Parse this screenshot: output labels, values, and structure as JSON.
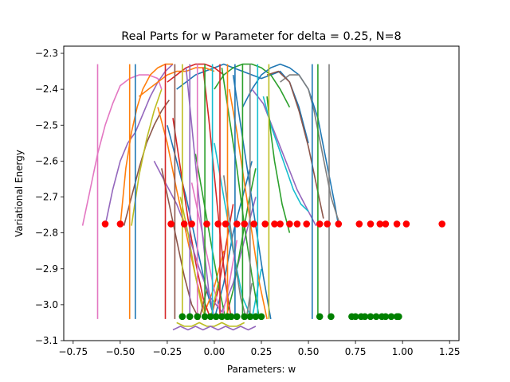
{
  "chart_data": {
    "type": "line",
    "title": "Real Parts for w Parameter for delta = 0.25, N=8",
    "xlabel": "Parameters: w",
    "ylabel": "Variational Energy",
    "xlim": [
      -0.8,
      1.3
    ],
    "ylim": [
      -3.1,
      -2.28
    ],
    "grid": false,
    "xticks": [
      -0.75,
      -0.5,
      -0.25,
      0.0,
      0.25,
      0.5,
      0.75,
      1.0,
      1.25
    ],
    "xtick_labels": [
      "−0.75",
      "−0.50",
      "−0.25",
      "0.00",
      "0.25",
      "0.50",
      "0.75",
      "1.00",
      "1.25"
    ],
    "yticks": [
      -3.1,
      -3.0,
      -2.9,
      -2.8,
      -2.7,
      -2.6,
      -2.5,
      -2.4,
      -2.3
    ],
    "ytick_labels": [
      "−3.1",
      "−3.0",
      "−2.9",
      "−2.8",
      "−2.7",
      "−2.6",
      "−2.5",
      "−2.4",
      "−2.3"
    ],
    "series": [
      {
        "color": "#e377c2",
        "x": [
          -0.7,
          -0.66,
          -0.62,
          -0.58,
          -0.54,
          -0.5,
          -0.45,
          -0.4,
          -0.35,
          -0.3,
          -0.28
        ],
        "y": [
          -2.78,
          -2.68,
          -2.58,
          -2.5,
          -2.44,
          -2.39,
          -2.37,
          -2.36,
          -2.36,
          -2.37,
          -2.4
        ]
      },
      {
        "color": "#e377c2",
        "x": [
          -0.62,
          -0.62,
          -0.62
        ],
        "y": [
          -3.04,
          -2.7,
          -2.33
        ]
      },
      {
        "color": "#9467bd",
        "x": [
          -0.58,
          -0.54,
          -0.5,
          -0.46,
          -0.42,
          -0.38,
          -0.34,
          -0.3,
          -0.26,
          -0.22
        ],
        "y": [
          -2.78,
          -2.68,
          -2.6,
          -2.55,
          -2.52,
          -2.47,
          -2.42,
          -2.38,
          -2.35,
          -2.33
        ]
      },
      {
        "color": "#ff7f0e",
        "x": [
          -0.5,
          -0.47,
          -0.44,
          -0.41,
          -0.38,
          -0.34,
          -0.3,
          -0.26,
          -0.22
        ],
        "y": [
          -2.78,
          -2.62,
          -2.52,
          -2.45,
          -2.4,
          -2.36,
          -2.34,
          -2.33,
          -2.33
        ]
      },
      {
        "color": "#8c564b",
        "x": [
          -0.48,
          -0.44,
          -0.4,
          -0.36,
          -0.32,
          -0.28,
          -0.24
        ],
        "y": [
          -2.78,
          -2.7,
          -2.62,
          -2.55,
          -2.5,
          -2.46,
          -2.43
        ]
      },
      {
        "color": "#bcbd22",
        "x": [
          -0.44,
          -0.4,
          -0.36,
          -0.32,
          -0.28
        ],
        "y": [
          -2.78,
          -2.64,
          -2.54,
          -2.46,
          -2.4
        ]
      },
      {
        "color": "#1f77b4",
        "x": [
          -0.2,
          -0.15,
          -0.1,
          -0.05,
          0.0,
          0.05,
          0.1,
          0.15,
          0.2,
          0.25,
          0.3,
          0.35,
          0.4,
          0.45,
          0.5
        ],
        "y": [
          -2.4,
          -2.38,
          -2.36,
          -2.35,
          -2.34,
          -2.33,
          -2.34,
          -2.35,
          -2.36,
          -2.37,
          -2.36,
          -2.35,
          -2.38,
          -2.45,
          -2.55
        ]
      },
      {
        "color": "#ff7f0e",
        "x": [
          -0.4,
          -0.35,
          -0.3,
          -0.25,
          -0.2,
          -0.15,
          -0.1,
          -0.05,
          0.0
        ],
        "y": [
          -2.42,
          -2.4,
          -2.38,
          -2.36,
          -2.35,
          -2.35,
          -2.34,
          -2.34,
          -2.35
        ]
      },
      {
        "color": "#d62728",
        "x": [
          -0.25,
          -0.2,
          -0.15,
          -0.1,
          -0.05,
          0.0,
          0.05
        ],
        "y": [
          -2.38,
          -2.36,
          -2.34,
          -2.33,
          -2.33,
          -2.34,
          -2.36
        ]
      },
      {
        "color": "#2ca02c",
        "x": [
          0.0,
          0.05,
          0.1,
          0.15,
          0.2,
          0.25,
          0.3,
          0.35,
          0.4
        ],
        "y": [
          -2.4,
          -2.36,
          -2.34,
          -2.33,
          -2.33,
          -2.34,
          -2.36,
          -2.4,
          -2.45
        ]
      },
      {
        "color": "#1f77b4",
        "x": [
          0.15,
          0.2,
          0.25,
          0.3,
          0.35,
          0.4,
          0.45,
          0.5,
          0.55,
          0.58,
          0.61,
          0.64,
          0.66
        ],
        "y": [
          -2.45,
          -2.4,
          -2.36,
          -2.34,
          -2.33,
          -2.34,
          -2.36,
          -2.4,
          -2.48,
          -2.56,
          -2.64,
          -2.72,
          -2.78
        ]
      },
      {
        "color": "#7f7f7f",
        "x": [
          0.35,
          0.4,
          0.45,
          0.5,
          0.53,
          0.56,
          0.59,
          0.62,
          0.65,
          0.67
        ],
        "y": [
          -2.38,
          -2.36,
          -2.36,
          -2.4,
          -2.46,
          -2.54,
          -2.62,
          -2.7,
          -2.75,
          -2.78
        ]
      },
      {
        "color": "#8c564b",
        "x": [
          0.28,
          0.34,
          0.4,
          0.45,
          0.5,
          0.54,
          0.58
        ],
        "y": [
          -2.36,
          -2.35,
          -2.38,
          -2.46,
          -2.56,
          -2.66,
          -2.76
        ]
      },
      {
        "color": "#9467bd",
        "x": [
          0.2,
          0.26,
          0.32,
          0.38,
          0.44,
          0.5,
          0.54
        ],
        "y": [
          -2.4,
          -2.44,
          -2.52,
          -2.6,
          -2.68,
          -2.74,
          -2.78
        ]
      },
      {
        "color": "#17becf",
        "x": [
          0.26,
          0.3,
          0.34,
          0.38,
          0.42,
          0.46,
          0.5
        ],
        "y": [
          -2.42,
          -2.5,
          -2.56,
          -2.62,
          -2.68,
          -2.72,
          -2.74
        ]
      },
      {
        "color": "#2ca02c",
        "x": [
          0.28,
          0.3,
          0.32,
          0.34,
          0.36,
          0.38,
          0.4
        ],
        "y": [
          -2.42,
          -2.52,
          -2.6,
          -2.66,
          -2.72,
          -2.76,
          -2.8
        ]
      },
      {
        "color": "#1f77b4",
        "x": [
          -0.25,
          -0.2,
          -0.15,
          -0.1,
          -0.05,
          0.0,
          0.05,
          0.1,
          0.15,
          0.2
        ],
        "y": [
          -2.5,
          -2.6,
          -2.7,
          -2.82,
          -2.94,
          -3.04,
          -2.94,
          -2.8,
          -2.7,
          -2.6
        ]
      },
      {
        "color": "#ff7f0e",
        "x": [
          -0.3,
          -0.25,
          -0.2,
          -0.15,
          -0.1,
          -0.05,
          0.0,
          0.05
        ],
        "y": [
          -2.45,
          -2.55,
          -2.68,
          -2.8,
          -2.92,
          -3.02,
          -2.95,
          -2.85
        ]
      },
      {
        "color": "#d62728",
        "x": [
          -0.22,
          -0.18,
          -0.14,
          -0.1,
          -0.06,
          -0.02,
          0.02,
          0.06,
          0.1
        ],
        "y": [
          -2.48,
          -2.62,
          -2.76,
          -2.88,
          -2.98,
          -3.04,
          -2.96,
          -2.84,
          -2.72
        ]
      },
      {
        "color": "#9467bd",
        "x": [
          -0.32,
          -0.26,
          -0.2,
          -0.14,
          -0.08,
          -0.02,
          0.04,
          0.1,
          0.16,
          0.22
        ],
        "y": [
          -2.6,
          -2.66,
          -2.72,
          -2.8,
          -2.9,
          -2.98,
          -3.02,
          -2.94,
          -2.82,
          -2.7
        ]
      },
      {
        "color": "#2ca02c",
        "x": [
          -0.1,
          -0.06,
          -0.02,
          0.02,
          0.06,
          0.1,
          0.14,
          0.18,
          0.22
        ],
        "y": [
          -2.58,
          -2.7,
          -2.82,
          -2.94,
          -3.04,
          -2.96,
          -2.84,
          -2.72,
          -2.62
        ]
      },
      {
        "color": "#17becf",
        "x": [
          0.0,
          0.05,
          0.1,
          0.15,
          0.2,
          0.25
        ],
        "y": [
          -2.55,
          -2.7,
          -2.85,
          -2.98,
          -3.04,
          -2.9
        ]
      },
      {
        "color": "#7f7f7f",
        "x": [
          0.05,
          0.08,
          0.11,
          0.14,
          0.17,
          0.2
        ],
        "y": [
          -2.64,
          -2.76,
          -2.88,
          -2.98,
          -3.04,
          -2.94
        ]
      },
      {
        "color": "#e377c2",
        "x": [
          -0.12,
          -0.08,
          -0.04,
          0.0,
          0.04,
          0.08,
          0.12
        ],
        "y": [
          -2.66,
          -2.76,
          -2.86,
          -2.96,
          -3.04,
          -2.94,
          -2.82
        ]
      },
      {
        "color": "#bcbd22",
        "x": [
          -0.18,
          -0.14,
          -0.1,
          -0.06,
          -0.02,
          0.02
        ],
        "y": [
          -2.7,
          -2.8,
          -2.92,
          -3.02,
          -3.04,
          -2.94
        ]
      },
      {
        "color": "#8c564b",
        "x": [
          -0.28,
          -0.24,
          -0.2,
          -0.16,
          -0.12,
          -0.08,
          -0.04
        ],
        "y": [
          -2.62,
          -2.72,
          -2.82,
          -2.92,
          -3.0,
          -3.04,
          -2.96
        ]
      },
      {
        "color": "#1f77b4",
        "x": [
          0.1,
          0.14,
          0.18,
          0.22,
          0.26,
          0.3
        ],
        "y": [
          -2.36,
          -2.5,
          -2.64,
          -2.78,
          -2.92,
          -3.04
        ]
      },
      {
        "color": "#ff7f0e",
        "x": [
          0.08,
          0.12,
          0.16,
          0.2,
          0.24,
          0.28
        ],
        "y": [
          -2.4,
          -2.52,
          -2.66,
          -2.8,
          -2.94,
          -3.04
        ]
      },
      {
        "color": "#2ca02c",
        "x": [
          0.04,
          0.08,
          0.12,
          0.16,
          0.2,
          0.24
        ],
        "y": [
          -2.34,
          -2.48,
          -2.62,
          -2.78,
          -2.92,
          -3.04
        ]
      },
      {
        "color": "#d62728",
        "x": [
          -0.06,
          -0.03,
          0.0,
          0.03,
          0.06,
          0.09
        ],
        "y": [
          -2.34,
          -2.48,
          -2.64,
          -2.8,
          -2.94,
          -3.04
        ]
      },
      {
        "color": "#9467bd",
        "x": [
          -0.15,
          -0.12,
          -0.09,
          -0.06,
          -0.03,
          0.0
        ],
        "y": [
          -2.34,
          -2.5,
          -2.66,
          -2.82,
          -2.96,
          -3.04
        ]
      },
      {
        "color": "#ff7f0e",
        "x": [
          -0.45,
          -0.45,
          -0.45
        ],
        "y": [
          -3.04,
          -2.7,
          -2.33
        ]
      },
      {
        "color": "#1f77b4",
        "x": [
          -0.42,
          -0.42,
          -0.42
        ],
        "y": [
          -3.04,
          -2.7,
          -2.33
        ]
      },
      {
        "color": "#d62728",
        "x": [
          -0.26,
          -0.26,
          -0.26
        ],
        "y": [
          -3.04,
          -2.7,
          -2.33
        ]
      },
      {
        "color": "#8c564b",
        "x": [
          -0.21,
          -0.21,
          -0.21
        ],
        "y": [
          -3.04,
          -2.7,
          -2.33
        ]
      },
      {
        "color": "#bcbd22",
        "x": [
          -0.17,
          -0.17,
          -0.17
        ],
        "y": [
          -3.04,
          -2.7,
          -2.33
        ]
      },
      {
        "color": "#9467bd",
        "x": [
          -0.13,
          -0.13,
          -0.13
        ],
        "y": [
          -3.04,
          -2.7,
          -2.33
        ]
      },
      {
        "color": "#e377c2",
        "x": [
          -0.09,
          -0.09,
          -0.09
        ],
        "y": [
          -3.04,
          -2.7,
          -2.33
        ]
      },
      {
        "color": "#2ca02c",
        "x": [
          -0.05,
          -0.05,
          -0.05
        ],
        "y": [
          -3.04,
          -2.7,
          -2.33
        ]
      },
      {
        "color": "#17becf",
        "x": [
          -0.01,
          -0.01,
          -0.01
        ],
        "y": [
          -3.04,
          -2.7,
          -2.33
        ]
      },
      {
        "color": "#d62728",
        "x": [
          0.03,
          0.03,
          0.03
        ],
        "y": [
          -3.04,
          -2.7,
          -2.33
        ]
      },
      {
        "color": "#ff7f0e",
        "x": [
          0.07,
          0.07,
          0.07
        ],
        "y": [
          -3.04,
          -2.7,
          -2.33
        ]
      },
      {
        "color": "#1f77b4",
        "x": [
          0.11,
          0.11,
          0.11
        ],
        "y": [
          -3.04,
          -2.7,
          -2.33
        ]
      },
      {
        "color": "#2ca02c",
        "x": [
          0.15,
          0.15,
          0.15
        ],
        "y": [
          -3.04,
          -2.7,
          -2.33
        ]
      },
      {
        "color": "#7f7f7f",
        "x": [
          0.19,
          0.19,
          0.19
        ],
        "y": [
          -3.04,
          -2.7,
          -2.33
        ]
      },
      {
        "color": "#17becf",
        "x": [
          0.23,
          0.23,
          0.23
        ],
        "y": [
          -3.04,
          -2.7,
          -2.33
        ]
      },
      {
        "color": "#bcbd22",
        "x": [
          0.29,
          0.29,
          0.29
        ],
        "y": [
          -3.04,
          -2.7,
          -2.33
        ]
      },
      {
        "color": "#1f77b4",
        "x": [
          0.52,
          0.52,
          0.52
        ],
        "y": [
          -3.04,
          -2.7,
          -2.33
        ]
      },
      {
        "color": "#2ca02c",
        "x": [
          0.55,
          0.55,
          0.55
        ],
        "y": [
          -3.04,
          -2.7,
          -2.33
        ]
      },
      {
        "color": "#7f7f7f",
        "x": [
          0.61,
          0.61,
          0.61
        ],
        "y": [
          -3.04,
          -2.7,
          -2.33
        ]
      },
      {
        "color": "#bcbd22",
        "x": [
          -0.2,
          -0.16,
          -0.12,
          -0.08,
          -0.04,
          0.0,
          0.04,
          0.08,
          0.12,
          0.16
        ],
        "y": [
          -3.05,
          -3.06,
          -3.06,
          -3.05,
          -3.06,
          -3.06,
          -3.05,
          -3.06,
          -3.06,
          -3.05
        ]
      },
      {
        "color": "#9467bd",
        "x": [
          -0.22,
          -0.18,
          -0.14,
          -0.1,
          -0.06,
          -0.02,
          0.02,
          0.06,
          0.1,
          0.14,
          0.18,
          0.22
        ],
        "y": [
          -3.07,
          -3.06,
          -3.07,
          -3.06,
          -3.07,
          -3.06,
          -3.07,
          -3.06,
          -3.07,
          -3.06,
          -3.07,
          -3.06
        ]
      }
    ],
    "scatter": [
      {
        "color": "#ff0000",
        "y": -2.775,
        "x": [
          -0.58,
          -0.5,
          -0.23,
          -0.16,
          -0.12,
          -0.04,
          0.02,
          0.06,
          0.12,
          0.16,
          0.21,
          0.27,
          0.32,
          0.35,
          0.4,
          0.44,
          0.49,
          0.56,
          0.6,
          0.66,
          0.77,
          0.83,
          0.88,
          0.91,
          0.97,
          1.02,
          1.21
        ]
      },
      {
        "color": "#008000",
        "y": -3.033,
        "x": [
          -0.17,
          -0.13,
          -0.09,
          -0.05,
          -0.02,
          0.01,
          0.04,
          0.07,
          0.09,
          0.12,
          0.16,
          0.19,
          0.22,
          0.25,
          0.56,
          0.62,
          0.73,
          0.75,
          0.78,
          0.8,
          0.83,
          0.86,
          0.89,
          0.91,
          0.94,
          0.97,
          0.98
        ]
      }
    ]
  }
}
